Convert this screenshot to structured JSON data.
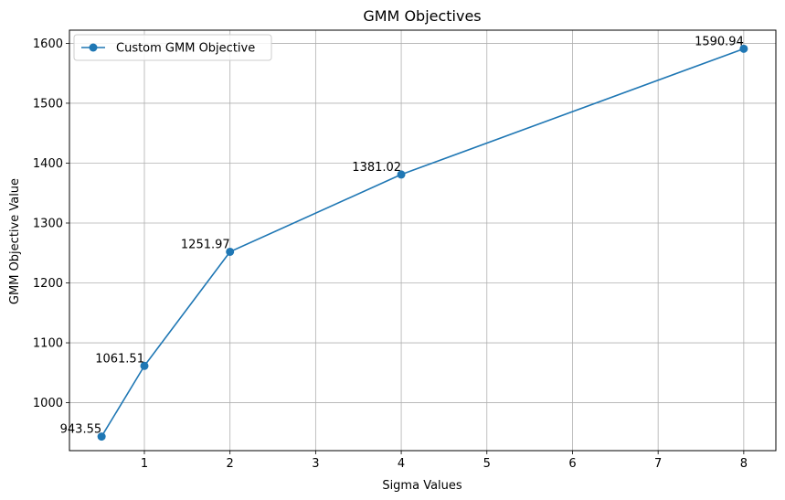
{
  "chart_data": {
    "type": "line",
    "title": "GMM Objectives",
    "xlabel": "Sigma Values",
    "ylabel": "GMM Objective Value",
    "xlim": [
      0.125,
      8.375
    ],
    "ylim": [
      920,
      1622
    ],
    "x_ticks": [
      1,
      2,
      3,
      4,
      5,
      6,
      7,
      8
    ],
    "y_ticks": [
      1000,
      1100,
      1200,
      1300,
      1400,
      1500,
      1600
    ],
    "grid": true,
    "legend_position": "upper-left",
    "series": [
      {
        "name": "Custom GMM Objective",
        "color": "#1f77b4",
        "marker": "circle",
        "x": [
          0.5,
          1,
          2,
          4,
          8
        ],
        "y": [
          943.55,
          1061.51,
          1251.97,
          1381.02,
          1590.94
        ],
        "labels": [
          "943.55",
          "1061.51",
          "1251.97",
          "1381.02",
          "1590.94"
        ]
      }
    ]
  }
}
